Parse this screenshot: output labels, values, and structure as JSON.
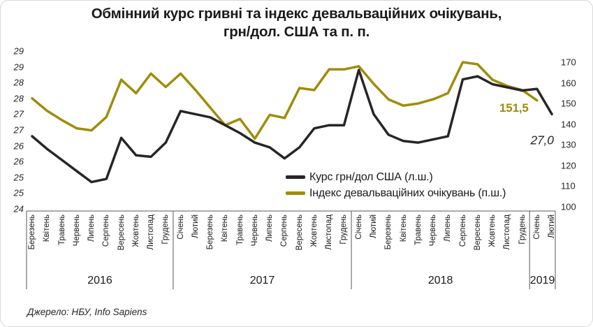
{
  "source_note": "Джерело: НБУ, Info Sapiens",
  "chart_data": {
    "type": "line",
    "title": "Обмінний курс гривні та індекс девальваційних очікувань,",
    "subtitle": "грн/дол. США та п. п.",
    "grid": false,
    "legend_position": "center-right-inside",
    "x_categories": [
      "Березень",
      "Квітень",
      "Травень",
      "Червень",
      "Липень",
      "Серпень",
      "Вересень",
      "Жовтень",
      "Листопад",
      "Грудень",
      "Січень",
      "Лютий",
      "Березень",
      "Квітень",
      "Травень",
      "Червень",
      "Липень",
      "Серпень",
      "Вересень",
      "Жовтень",
      "Листопад",
      "Грудень",
      "Січень",
      "Лютий",
      "Березень",
      "Квітень",
      "Травень",
      "Червень",
      "Липень",
      "Серпень",
      "Вересень",
      "Жовтень",
      "Листопад",
      "Грудень",
      "Січень",
      "Лютий"
    ],
    "year_groups": [
      {
        "year": "2016",
        "count": 10
      },
      {
        "year": "2017",
        "count": 12
      },
      {
        "year": "2018",
        "count": 12
      },
      {
        "year": "2019",
        "count": 2
      }
    ],
    "left_axis": {
      "min": 24,
      "max": 29,
      "step": 0.5,
      "tick_labels": [
        "29",
        "29",
        "28",
        "28",
        "27",
        "27",
        "26",
        "26",
        "25",
        "25",
        "24"
      ]
    },
    "right_axis": {
      "min": 100,
      "max": 170,
      "step": 10,
      "tick_labels": [
        "170",
        "160",
        "150",
        "140",
        "130",
        "120",
        "110",
        "100"
      ]
    },
    "series": [
      {
        "name": "Курс грн/дол США (л.ш.)",
        "axis": "left",
        "color": "#262626",
        "values": [
          26.3,
          25.9,
          25.55,
          25.2,
          24.85,
          24.95,
          26.25,
          25.7,
          25.65,
          26.1,
          27.1,
          27.0,
          26.9,
          26.65,
          26.4,
          26.1,
          25.95,
          25.6,
          25.95,
          26.55,
          26.65,
          26.65,
          28.4,
          27.0,
          26.35,
          26.15,
          26.1,
          26.2,
          26.3,
          28.1,
          28.2,
          27.95,
          27.85,
          27.75,
          27.8,
          27.0
        ]
      },
      {
        "name": "Індекс девальваційних очікувань (п.ш.)",
        "axis": "right",
        "color": "#A08C0A",
        "values": [
          152.5,
          146.5,
          142,
          138,
          137,
          143.5,
          161.5,
          155,
          164.5,
          158,
          164.5,
          156.5,
          148,
          139.5,
          142.5,
          133,
          144.5,
          143,
          157.5,
          156.5,
          166.5,
          166.5,
          168,
          159.5,
          152,
          149,
          150,
          152,
          155,
          170,
          169,
          161.5,
          158.5,
          156.5,
          151.5,
          null
        ]
      }
    ],
    "annotations": [
      {
        "text": "151,5",
        "series": 1,
        "point_index": 34,
        "color": "#A08C0A",
        "italic": false
      },
      {
        "text": "27,0",
        "series": 0,
        "point_index": 35,
        "color": "#262626",
        "italic": true
      }
    ]
  }
}
